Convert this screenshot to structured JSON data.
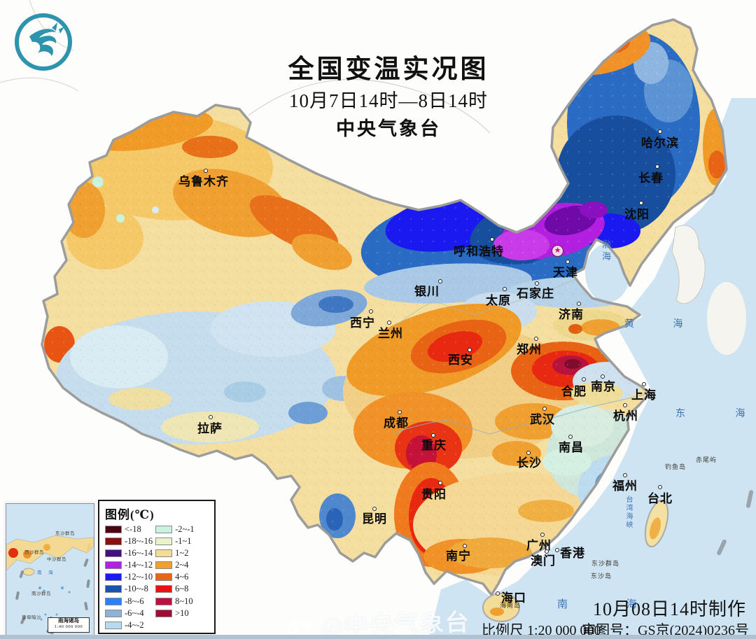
{
  "header": {
    "title": "全国变温实况图",
    "period": "10月7日14时—8日14时",
    "agency": "中央气象台"
  },
  "legend": {
    "title": "图例(℃)",
    "items": [
      {
        "label": "<-18",
        "color": "#4a0613"
      },
      {
        "label": "-18~-16",
        "color": "#8a0f0f"
      },
      {
        "label": "-16~-14",
        "color": "#45107e"
      },
      {
        "label": "-14~-12",
        "color": "#b21fe0"
      },
      {
        "label": "-12~-10",
        "color": "#1a1af5"
      },
      {
        "label": "-10~-8",
        "color": "#1853ae"
      },
      {
        "label": "-8~-6",
        "color": "#2e7ef5"
      },
      {
        "label": "-6~-4",
        "color": "#8fb2d5"
      },
      {
        "label": "-4~-2",
        "color": "#b7dbee"
      },
      {
        "label": "-2~-1",
        "color": "#c9f2df"
      },
      {
        "label": "-1~1",
        "color": "#e9f4c8"
      },
      {
        "label": "1~2",
        "color": "#f2dc96"
      },
      {
        "label": "2~4",
        "color": "#f0a030"
      },
      {
        "label": "4~6",
        "color": "#e86418"
      },
      {
        "label": "6~8",
        "color": "#ee1111"
      },
      {
        "label": "8~10",
        "color": "#ba1140"
      },
      {
        "label": ">10",
        "color": "#9e0e32"
      }
    ]
  },
  "cities": [
    {
      "name": "乌鲁木齐"
    },
    {
      "name": "哈尔滨"
    },
    {
      "name": "长春"
    },
    {
      "name": "沈阳"
    },
    {
      "name": "呼和浩特"
    },
    {
      "name": "天津"
    },
    {
      "name": "银川"
    },
    {
      "name": "太原"
    },
    {
      "name": "石家庄"
    },
    {
      "name": "济南"
    },
    {
      "name": "西宁"
    },
    {
      "name": "兰州"
    },
    {
      "name": "郑州"
    },
    {
      "name": "西安"
    },
    {
      "name": "合肥"
    },
    {
      "name": "南京"
    },
    {
      "name": "上海"
    },
    {
      "name": "杭州"
    },
    {
      "name": "武汉"
    },
    {
      "name": "成都"
    },
    {
      "name": "重庆"
    },
    {
      "name": "南昌"
    },
    {
      "name": "长沙"
    },
    {
      "name": "拉萨"
    },
    {
      "name": "贵阳"
    },
    {
      "name": "昆明"
    },
    {
      "name": "福州"
    },
    {
      "name": "台北"
    },
    {
      "name": "南宁"
    },
    {
      "name": "广州"
    },
    {
      "name": "澳门"
    },
    {
      "name": "香港"
    },
    {
      "name": "海口"
    }
  ],
  "seas": [
    {
      "name": "渤海"
    },
    {
      "name": "黄  海"
    },
    {
      "name": "东  海"
    },
    {
      "name": "南  海"
    },
    {
      "name": "台湾海峡"
    }
  ],
  "islets": [
    {
      "name": "钓鱼岛"
    },
    {
      "name": "赤尾屿"
    },
    {
      "name": "东沙群岛"
    },
    {
      "name": "东沙岛"
    },
    {
      "name": "海南岛"
    }
  ],
  "inset": {
    "title": "南海诸岛",
    "scale": "1:40 000 000",
    "labels": [
      {
        "name": "东沙群岛"
      },
      {
        "name": "西沙群岛"
      },
      {
        "name": "中沙群岛"
      },
      {
        "name": "南  海"
      },
      {
        "name": "南沙群岛"
      },
      {
        "name": "曾母暗沙"
      }
    ]
  },
  "footer": {
    "made": "10月08日14时制作",
    "scale": "比例尺 1:20 000 000",
    "approval": "审图号：GS京(2024)0236号",
    "watermark": "@中央气象台"
  }
}
